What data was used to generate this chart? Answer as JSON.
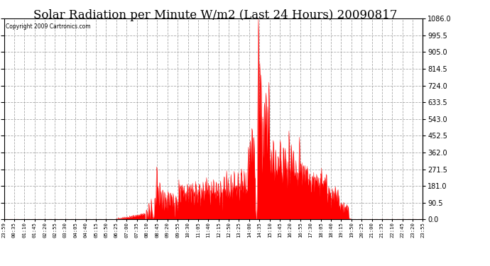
{
  "title": "Solar Radiation per Minute W/m2 (Last 24 Hours) 20090817",
  "copyright_text": "Copyright 2009 Cartronics.com",
  "bg_color": "#ffffff",
  "plot_bg_color": "#ffffff",
  "line_color": "#ff0000",
  "fill_color": "#ff0000",
  "grid_color": "#aaaaaa",
  "dashed_line_color": "#ff0000",
  "title_fontsize": 12,
  "ylabel_right": [
    "0.0",
    "90.5",
    "181.0",
    "271.5",
    "362.0",
    "452.5",
    "543.0",
    "633.5",
    "724.0",
    "814.5",
    "905.0",
    "995.5",
    "1086.0"
  ],
  "ymax": 1086.0,
  "ymin": 0.0,
  "xtick_labels": [
    "23:59",
    "00:35",
    "01:10",
    "01:45",
    "02:20",
    "02:55",
    "03:30",
    "04:05",
    "04:40",
    "05:15",
    "05:50",
    "06:25",
    "07:00",
    "07:35",
    "08:10",
    "08:45",
    "09:20",
    "09:55",
    "10:30",
    "11:05",
    "11:40",
    "12:15",
    "12:50",
    "13:25",
    "14:00",
    "14:35",
    "15:10",
    "15:45",
    "16:20",
    "16:55",
    "17:30",
    "18:05",
    "18:40",
    "19:15",
    "19:50",
    "20:25",
    "21:00",
    "21:35",
    "22:10",
    "22:45",
    "23:20",
    "23:55"
  ]
}
